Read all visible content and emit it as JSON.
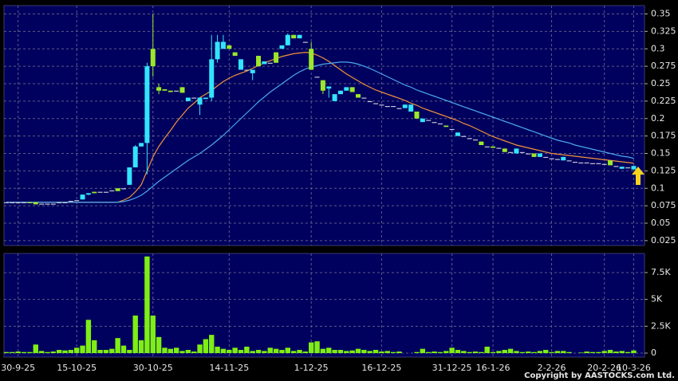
{
  "chart_data": [
    {
      "type": "candlestick",
      "up_color": "#33e4ff",
      "down_color": "#9be82a",
      "flat_color": "#c8c8d8",
      "open": [
        0.08,
        0.08,
        0.08,
        0.08,
        0.08,
        0.08,
        0.078,
        0.078,
        0.078,
        0.08,
        0.08,
        0.082,
        0.083,
        0.084,
        0.091,
        0.095,
        0.095,
        0.095,
        0.097,
        0.1,
        0.1,
        0.105,
        0.13,
        0.16,
        0.165,
        0.3,
        0.245,
        0.242,
        0.24,
        0.24,
        0.245,
        0.225,
        0.23,
        0.22,
        0.228,
        0.23,
        0.285,
        0.3,
        0.305,
        0.295,
        0.27,
        0.27,
        0.265,
        0.29,
        0.278,
        0.28,
        0.295,
        0.3,
        0.305,
        0.32,
        0.315,
        0.31,
        0.3,
        0.26,
        0.255,
        0.243,
        0.225,
        0.235,
        0.24,
        0.245,
        0.235,
        0.23,
        0.225,
        0.222,
        0.22,
        0.218,
        0.218,
        0.215,
        0.215,
        0.21,
        0.21,
        0.195,
        0.198,
        0.195,
        0.193,
        0.19,
        0.185,
        0.175,
        0.175,
        0.172,
        0.17,
        0.167,
        0.16,
        0.16,
        0.158,
        0.157,
        0.152,
        0.15,
        0.152,
        0.15,
        0.15,
        0.145,
        0.145,
        0.143,
        0.142,
        0.14,
        0.14,
        0.138,
        0.137,
        0.137,
        0.136,
        0.136,
        0.135,
        0.14,
        0.132,
        0.128,
        0.13,
        0.127
      ],
      "high": [
        0.08,
        0.08,
        0.08,
        0.08,
        0.08,
        0.08,
        0.078,
        0.078,
        0.078,
        0.08,
        0.08,
        0.082,
        0.083,
        0.091,
        0.093,
        0.095,
        0.095,
        0.095,
        0.097,
        0.1,
        0.1,
        0.13,
        0.162,
        0.165,
        0.28,
        0.35,
        0.25,
        0.242,
        0.24,
        0.24,
        0.245,
        0.23,
        0.23,
        0.23,
        0.23,
        0.32,
        0.32,
        0.32,
        0.305,
        0.295,
        0.285,
        0.27,
        0.27,
        0.29,
        0.282,
        0.28,
        0.295,
        0.305,
        0.322,
        0.32,
        0.32,
        0.31,
        0.31,
        0.26,
        0.255,
        0.246,
        0.235,
        0.24,
        0.245,
        0.245,
        0.235,
        0.23,
        0.225,
        0.222,
        0.22,
        0.218,
        0.218,
        0.215,
        0.22,
        0.22,
        0.21,
        0.2,
        0.198,
        0.195,
        0.193,
        0.19,
        0.185,
        0.18,
        0.175,
        0.172,
        0.17,
        0.167,
        0.16,
        0.16,
        0.158,
        0.157,
        0.152,
        0.157,
        0.152,
        0.15,
        0.15,
        0.15,
        0.145,
        0.143,
        0.142,
        0.145,
        0.14,
        0.138,
        0.137,
        0.137,
        0.136,
        0.136,
        0.135,
        0.14,
        0.132,
        0.131,
        0.13,
        0.132
      ],
      "low": [
        0.08,
        0.08,
        0.08,
        0.08,
        0.079,
        0.077,
        0.078,
        0.078,
        0.078,
        0.08,
        0.08,
        0.082,
        0.083,
        0.084,
        0.09,
        0.093,
        0.095,
        0.095,
        0.097,
        0.096,
        0.1,
        0.105,
        0.13,
        0.16,
        0.12,
        0.26,
        0.235,
        0.24,
        0.238,
        0.24,
        0.237,
        0.225,
        0.23,
        0.205,
        0.228,
        0.225,
        0.28,
        0.3,
        0.3,
        0.29,
        0.27,
        0.27,
        0.255,
        0.275,
        0.278,
        0.28,
        0.28,
        0.3,
        0.305,
        0.315,
        0.315,
        0.31,
        0.27,
        0.26,
        0.235,
        0.23,
        0.225,
        0.235,
        0.24,
        0.238,
        0.23,
        0.23,
        0.225,
        0.222,
        0.22,
        0.218,
        0.218,
        0.215,
        0.215,
        0.21,
        0.2,
        0.195,
        0.198,
        0.195,
        0.193,
        0.188,
        0.185,
        0.175,
        0.175,
        0.172,
        0.17,
        0.162,
        0.16,
        0.158,
        0.158,
        0.152,
        0.152,
        0.15,
        0.152,
        0.15,
        0.145,
        0.145,
        0.145,
        0.143,
        0.142,
        0.14,
        0.14,
        0.138,
        0.137,
        0.137,
        0.136,
        0.136,
        0.135,
        0.133,
        0.132,
        0.128,
        0.13,
        0.127
      ],
      "close": [
        0.08,
        0.08,
        0.08,
        0.08,
        0.079,
        0.077,
        0.078,
        0.078,
        0.078,
        0.08,
        0.08,
        0.082,
        0.083,
        0.091,
        0.093,
        0.093,
        0.095,
        0.095,
        0.097,
        0.096,
        0.1,
        0.13,
        0.16,
        0.165,
        0.275,
        0.275,
        0.24,
        0.24,
        0.238,
        0.24,
        0.237,
        0.23,
        0.23,
        0.23,
        0.23,
        0.285,
        0.31,
        0.31,
        0.3,
        0.29,
        0.285,
        0.27,
        0.27,
        0.275,
        0.282,
        0.28,
        0.28,
        0.305,
        0.32,
        0.315,
        0.32,
        0.31,
        0.27,
        0.26,
        0.24,
        0.246,
        0.235,
        0.24,
        0.245,
        0.238,
        0.23,
        0.23,
        0.225,
        0.222,
        0.22,
        0.218,
        0.218,
        0.215,
        0.22,
        0.22,
        0.2,
        0.2,
        0.198,
        0.195,
        0.193,
        0.188,
        0.185,
        0.18,
        0.175,
        0.172,
        0.17,
        0.162,
        0.16,
        0.158,
        0.158,
        0.152,
        0.152,
        0.157,
        0.152,
        0.15,
        0.145,
        0.15,
        0.145,
        0.143,
        0.142,
        0.145,
        0.14,
        0.138,
        0.137,
        0.137,
        0.136,
        0.136,
        0.135,
        0.133,
        0.132,
        0.131,
        0.13,
        0.132
      ],
      "series": [
        {
          "color": "#f0943a",
          "values": [
            0.08,
            0.08,
            0.08,
            0.08,
            0.08,
            0.08,
            0.08,
            0.08,
            0.08,
            0.08,
            0.08,
            0.08,
            0.08,
            0.08,
            0.08,
            0.08,
            0.08,
            0.08,
            0.08,
            0.08,
            0.083,
            0.087,
            0.095,
            0.105,
            0.125,
            0.145,
            0.16,
            0.172,
            0.183,
            0.195,
            0.205,
            0.215,
            0.222,
            0.23,
            0.235,
            0.24,
            0.247,
            0.253,
            0.258,
            0.262,
            0.265,
            0.268,
            0.272,
            0.276,
            0.28,
            0.283,
            0.286,
            0.289,
            0.291,
            0.293,
            0.294,
            0.295,
            0.294,
            0.291,
            0.287,
            0.282,
            0.276,
            0.27,
            0.264,
            0.259,
            0.254,
            0.249,
            0.245,
            0.241,
            0.238,
            0.235,
            0.232,
            0.229,
            0.226,
            0.222,
            0.219,
            0.215,
            0.212,
            0.209,
            0.206,
            0.203,
            0.2,
            0.197,
            0.193,
            0.19,
            0.186,
            0.182,
            0.178,
            0.174,
            0.171,
            0.168,
            0.165,
            0.162,
            0.16,
            0.158,
            0.156,
            0.154,
            0.152,
            0.15,
            0.149,
            0.148,
            0.147,
            0.146,
            0.145,
            0.144,
            0.143,
            0.142,
            0.141,
            0.14,
            0.139,
            0.138,
            0.137,
            0.136
          ]
        },
        {
          "color": "#4aa8f0",
          "values": [
            0.08,
            0.08,
            0.08,
            0.08,
            0.08,
            0.08,
            0.08,
            0.08,
            0.08,
            0.08,
            0.08,
            0.08,
            0.08,
            0.08,
            0.08,
            0.08,
            0.08,
            0.08,
            0.08,
            0.08,
            0.081,
            0.083,
            0.086,
            0.09,
            0.096,
            0.103,
            0.11,
            0.116,
            0.122,
            0.128,
            0.134,
            0.14,
            0.145,
            0.15,
            0.156,
            0.162,
            0.169,
            0.176,
            0.184,
            0.192,
            0.2,
            0.208,
            0.216,
            0.224,
            0.231,
            0.238,
            0.244,
            0.25,
            0.256,
            0.262,
            0.267,
            0.271,
            0.274,
            0.276,
            0.278,
            0.279,
            0.28,
            0.281,
            0.281,
            0.28,
            0.278,
            0.275,
            0.272,
            0.268,
            0.264,
            0.26,
            0.256,
            0.252,
            0.248,
            0.245,
            0.241,
            0.238,
            0.235,
            0.232,
            0.229,
            0.226,
            0.223,
            0.22,
            0.217,
            0.214,
            0.211,
            0.208,
            0.205,
            0.202,
            0.199,
            0.196,
            0.193,
            0.19,
            0.187,
            0.184,
            0.181,
            0.178,
            0.175,
            0.172,
            0.169,
            0.167,
            0.165,
            0.162,
            0.16,
            0.158,
            0.156,
            0.154,
            0.152,
            0.15,
            0.148,
            0.146,
            0.145,
            0.143
          ]
        }
      ],
      "ylim": [
        0.018,
        0.362
      ],
      "yticks": [
        0.025,
        0.05,
        0.075,
        0.1,
        0.125,
        0.15,
        0.175,
        0.2,
        0.225,
        0.25,
        0.275,
        0.3,
        0.325,
        0.35
      ],
      "grid": true
    },
    {
      "type": "bar",
      "color": "#7fee14",
      "categories": [
        null,
        null,
        "30-9-25",
        null,
        null,
        null,
        null,
        null,
        null,
        null,
        null,
        null,
        "15-10-25",
        null,
        null,
        null,
        null,
        null,
        null,
        null,
        null,
        null,
        null,
        null,
        null,
        "30-10-25",
        null,
        null,
        null,
        null,
        null,
        null,
        null,
        null,
        null,
        null,
        null,
        null,
        "14-11-25",
        null,
        null,
        null,
        null,
        null,
        null,
        null,
        null,
        null,
        null,
        null,
        null,
        null,
        "1-12-25",
        null,
        null,
        null,
        null,
        null,
        null,
        null,
        null,
        null,
        null,
        null,
        "16-12-25",
        null,
        null,
        null,
        null,
        null,
        null,
        null,
        null,
        null,
        null,
        null,
        "31-12-25",
        null,
        null,
        null,
        null,
        null,
        null,
        "16-1-26",
        null,
        null,
        null,
        null,
        null,
        null,
        null,
        null,
        null,
        "2-2-26",
        null,
        null,
        null,
        null,
        null,
        null,
        null,
        null,
        "20-2-26",
        null,
        null,
        null,
        null,
        "10-3-26"
      ],
      "values": [
        100,
        100,
        150,
        100,
        100,
        800,
        200,
        100,
        150,
        300,
        250,
        300,
        500,
        700,
        3100,
        1200,
        300,
        300,
        400,
        1400,
        700,
        300,
        3500,
        1200,
        9000,
        3500,
        1500,
        500,
        400,
        500,
        200,
        300,
        150,
        800,
        1300,
        1700,
        600,
        400,
        300,
        500,
        300,
        600,
        200,
        300,
        200,
        500,
        400,
        300,
        500,
        200,
        300,
        150,
        1000,
        1100,
        400,
        500,
        300,
        300,
        200,
        250,
        400,
        300,
        200,
        300,
        150,
        200,
        100,
        150,
        0,
        0,
        100,
        400,
        100,
        150,
        100,
        200,
        500,
        300,
        200,
        100,
        150,
        100,
        600,
        100,
        200,
        300,
        400,
        200,
        100,
        150,
        100,
        200,
        300,
        100,
        200,
        200,
        100,
        0,
        50,
        150,
        100,
        100,
        200,
        300,
        150,
        200,
        100,
        250
      ],
      "ylim": [
        -370,
        9280
      ],
      "yticks": [
        0,
        {
          "value": 2500,
          "label": "2.5K"
        },
        {
          "value": 5000,
          "label": "5K"
        },
        {
          "value": 7500,
          "label": "7.5K"
        }
      ],
      "grid": true
    }
  ],
  "footer": "Copyright by AASTOCKS.com Ltd."
}
